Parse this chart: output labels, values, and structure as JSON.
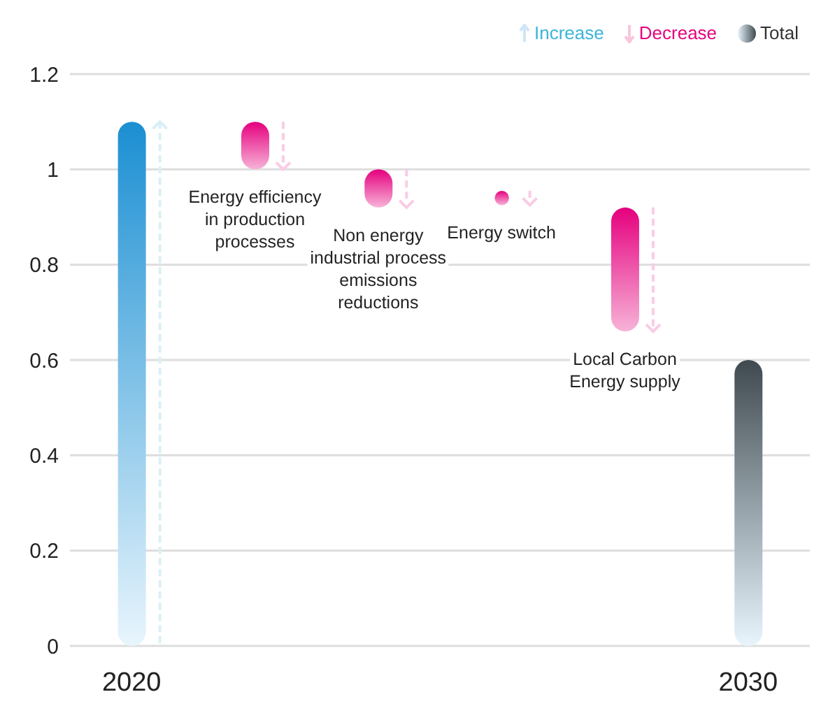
{
  "chart_data": {
    "type": "bar",
    "categories": [
      "2020",
      "Energy efficiency in production processes",
      "Non energy industrial process emissions reductions",
      "Energy switch",
      "Local Carbon Energy supply",
      "2030"
    ],
    "base": [
      0,
      1.1,
      1.0,
      0.955,
      0.92,
      0
    ],
    "values": [
      1.1,
      -0.1,
      -0.08,
      -0.03,
      -0.26,
      0.6
    ],
    "colors": [
      "#1b8fd2",
      "#e5007e",
      "#e5007e",
      "#e5007e",
      "#e5007e",
      "#3f4a50"
    ],
    "ylim": [
      0,
      1.2
    ],
    "yticks": [
      0,
      0.2,
      0.4,
      0.6,
      0.8,
      1,
      1.2
    ],
    "grid": "y",
    "annotations": [
      "Increase",
      "Decrease",
      "Total"
    ]
  }
}
